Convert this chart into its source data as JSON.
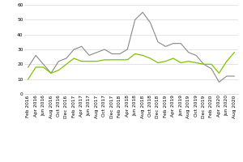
{
  "title": "",
  "xlabel": "",
  "ylabel": "",
  "background_color": "#ffffff",
  "grid_color": "#d8d8d8",
  "x_labels": [
    "Feb 2016",
    "Apr 2016",
    "Jun 2016",
    "Aug 2016",
    "Oct 2016",
    "Dec 2016",
    "Feb 2017",
    "Apr 2017",
    "Jun 2017",
    "Aug 2017",
    "Oct 2017",
    "Dec 2017",
    "Feb 2018",
    "Apr 2018",
    "Jun 2018",
    "Aug 2018",
    "Oct 2018",
    "Dec 2018",
    "Feb 2019",
    "Apr 2019",
    "Jun 2019",
    "Aug 2019",
    "Oct 2019",
    "Dec 2019",
    "Feb 2020",
    "Apr 2020",
    "Jun 2020",
    "Aug 2020"
  ],
  "pet_values": [
    18,
    26,
    20,
    14,
    22,
    24,
    30,
    32,
    26,
    28,
    30,
    27,
    27,
    30,
    50,
    55,
    48,
    35,
    32,
    34,
    34,
    28,
    26,
    20,
    17,
    8,
    12,
    12
  ],
  "pvc_values": [
    10,
    18,
    18,
    14,
    16,
    20,
    24,
    22,
    22,
    22,
    23,
    23,
    23,
    23,
    27,
    26,
    24,
    21,
    22,
    24,
    21,
    22,
    21,
    20,
    20,
    14,
    22,
    28
  ],
  "pet_color": "#888888",
  "pvc_color": "#7dc400",
  "ylim": [
    0,
    60
  ],
  "yticks": [
    0,
    10,
    20,
    30,
    40,
    50,
    60
  ],
  "legend_fontsize": 5.5,
  "tick_fontsize": 4.2
}
